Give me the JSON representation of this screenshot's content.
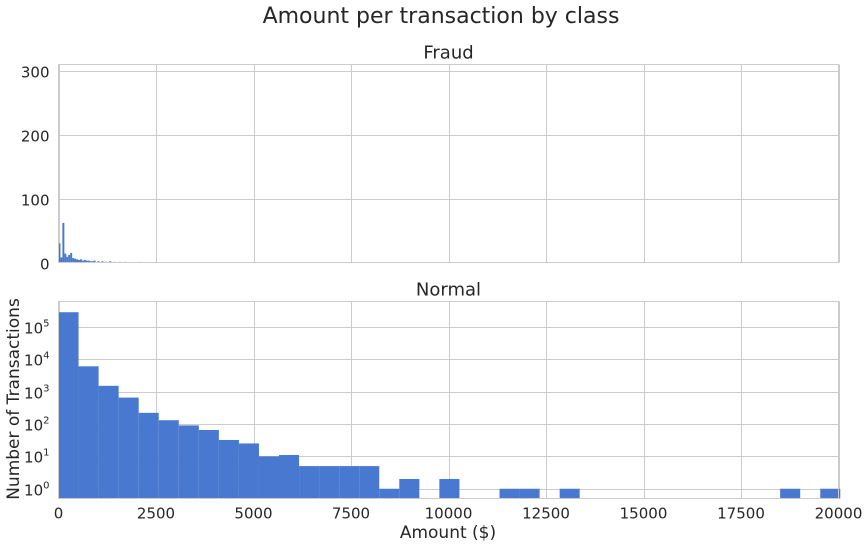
{
  "figure": {
    "title": "Amount per transaction by class"
  },
  "chart_data": [
    {
      "type": "bar",
      "title": "Fraud",
      "xlabel": "",
      "ylabel": "",
      "xlim": [
        0,
        20000
      ],
      "ylim": [
        0,
        310
      ],
      "yscale": "linear",
      "yticks": [
        0,
        100,
        200,
        300
      ],
      "xticks": [
        0,
        2500,
        5000,
        7500,
        10000,
        12500,
        15000,
        17500,
        20000
      ],
      "xtick_labels_visible": false,
      "grid": true,
      "color": "#4878cf",
      "bins": [
        {
          "x0": 0,
          "x1": 50,
          "count": 30
        },
        {
          "x0": 50,
          "x1": 100,
          "count": 8
        },
        {
          "x0": 100,
          "x1": 150,
          "count": 62
        },
        {
          "x0": 150,
          "x1": 200,
          "count": 14
        },
        {
          "x0": 200,
          "x1": 250,
          "count": 9
        },
        {
          "x0": 250,
          "x1": 300,
          "count": 12
        },
        {
          "x0": 300,
          "x1": 350,
          "count": 15
        },
        {
          "x0": 350,
          "x1": 400,
          "count": 7
        },
        {
          "x0": 400,
          "x1": 450,
          "count": 6
        },
        {
          "x0": 450,
          "x1": 500,
          "count": 5
        },
        {
          "x0": 500,
          "x1": 550,
          "count": 4
        },
        {
          "x0": 550,
          "x1": 600,
          "count": 5
        },
        {
          "x0": 600,
          "x1": 650,
          "count": 3
        },
        {
          "x0": 650,
          "x1": 700,
          "count": 4
        },
        {
          "x0": 700,
          "x1": 750,
          "count": 3
        },
        {
          "x0": 750,
          "x1": 800,
          "count": 3
        },
        {
          "x0": 800,
          "x1": 850,
          "count": 2
        },
        {
          "x0": 850,
          "x1": 900,
          "count": 2
        },
        {
          "x0": 900,
          "x1": 950,
          "count": 3
        },
        {
          "x0": 1000,
          "x1": 1050,
          "count": 2
        },
        {
          "x0": 1100,
          "x1": 1150,
          "count": 2
        },
        {
          "x0": 1200,
          "x1": 1250,
          "count": 1
        },
        {
          "x0": 1300,
          "x1": 1350,
          "count": 2
        },
        {
          "x0": 1400,
          "x1": 1450,
          "count": 1
        },
        {
          "x0": 1550,
          "x1": 1600,
          "count": 1
        },
        {
          "x0": 1700,
          "x1": 1750,
          "count": 1
        },
        {
          "x0": 2050,
          "x1": 2100,
          "count": 1
        }
      ]
    },
    {
      "type": "bar",
      "title": "Normal",
      "xlabel": "Amount ($)",
      "ylabel": "Number of Transactions",
      "xlim": [
        0,
        20000
      ],
      "ylim": [
        0.5,
        600000
      ],
      "yscale": "log",
      "yticks": [
        {
          "value": 1,
          "base": "10",
          "exp": "0"
        },
        {
          "value": 10,
          "base": "10",
          "exp": "1"
        },
        {
          "value": 100,
          "base": "10",
          "exp": "2"
        },
        {
          "value": 1000,
          "base": "10",
          "exp": "3"
        },
        {
          "value": 10000,
          "base": "10",
          "exp": "4"
        },
        {
          "value": 100000,
          "base": "10",
          "exp": "5"
        }
      ],
      "xticks": [
        0,
        2500,
        5000,
        7500,
        10000,
        12500,
        15000,
        17500,
        20000
      ],
      "xtick_labels_visible": true,
      "grid": true,
      "color": "#4878cf",
      "bins": [
        {
          "x0": 0,
          "x1": 514,
          "count": 280000
        },
        {
          "x0": 514,
          "x1": 1028,
          "count": 6000
        },
        {
          "x0": 1028,
          "x1": 1542,
          "count": 1500
        },
        {
          "x0": 1542,
          "x1": 2056,
          "count": 650
        },
        {
          "x0": 2056,
          "x1": 2570,
          "count": 220
        },
        {
          "x0": 2570,
          "x1": 3084,
          "count": 130
        },
        {
          "x0": 3084,
          "x1": 3598,
          "count": 90
        },
        {
          "x0": 3598,
          "x1": 4112,
          "count": 65
        },
        {
          "x0": 4112,
          "x1": 4626,
          "count": 32
        },
        {
          "x0": 4626,
          "x1": 5140,
          "count": 25
        },
        {
          "x0": 5140,
          "x1": 5654,
          "count": 10
        },
        {
          "x0": 5654,
          "x1": 6168,
          "count": 11
        },
        {
          "x0": 6168,
          "x1": 6682,
          "count": 5
        },
        {
          "x0": 6682,
          "x1": 7196,
          "count": 5
        },
        {
          "x0": 7196,
          "x1": 7710,
          "count": 5
        },
        {
          "x0": 7710,
          "x1": 8224,
          "count": 5
        },
        {
          "x0": 8224,
          "x1": 8738,
          "count": 1
        },
        {
          "x0": 8738,
          "x1": 9252,
          "count": 2
        },
        {
          "x0": 9766,
          "x1": 10280,
          "count": 2
        },
        {
          "x0": 11308,
          "x1": 11822,
          "count": 1
        },
        {
          "x0": 11822,
          "x1": 12336,
          "count": 1
        },
        {
          "x0": 12850,
          "x1": 13364,
          "count": 1
        },
        {
          "x0": 18504,
          "x1": 19018,
          "count": 1
        },
        {
          "x0": 19532,
          "x1": 20046,
          "count": 1
        }
      ]
    }
  ]
}
